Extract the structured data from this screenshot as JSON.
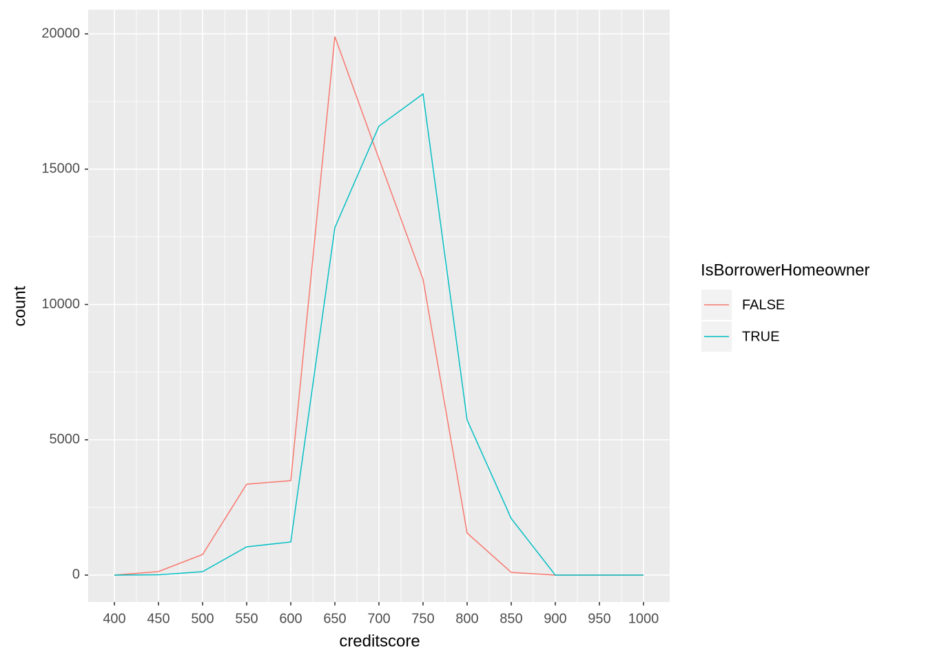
{
  "chart_data": {
    "type": "line",
    "x_label": "creditscore",
    "y_label": "count",
    "legend_title": "IsBorrowerHomeowner",
    "x": [
      400,
      450,
      500,
      550,
      600,
      650,
      700,
      750,
      800,
      850,
      900,
      950,
      1000
    ],
    "series": [
      {
        "name": "FALSE",
        "color": "#F8766D",
        "values": [
          0,
          130,
          760,
          3360,
          3490,
          19900,
          15390,
          10930,
          1554,
          100,
          0,
          0,
          0
        ]
      },
      {
        "name": "TRUE",
        "color": "#00BFC4",
        "values": [
          0,
          10,
          127,
          1045,
          1223,
          12840,
          16590,
          17780,
          5730,
          2090,
          0,
          0,
          0
        ]
      }
    ],
    "xlim": [
      370.3,
      1029.7
    ],
    "ylim": [
      -995,
      20895
    ],
    "xticks": [
      400,
      450,
      500,
      550,
      600,
      650,
      700,
      750,
      800,
      850,
      900,
      950,
      1000
    ],
    "yticks": [
      0,
      5000,
      10000,
      15000,
      20000
    ],
    "grid": true
  }
}
